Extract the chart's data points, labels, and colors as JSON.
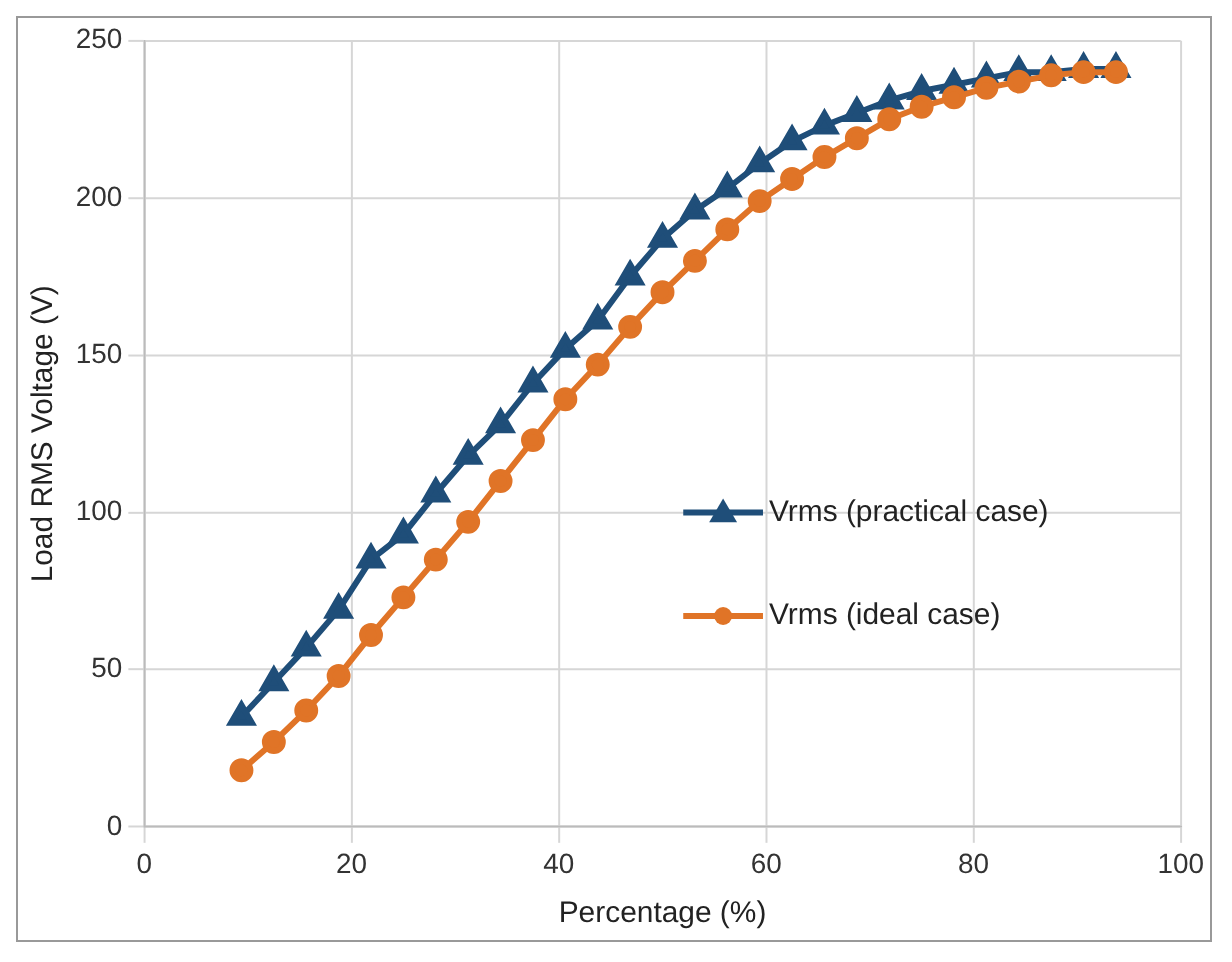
{
  "chart_data": {
    "type": "line",
    "xlabel": "Percentage (%)",
    "ylabel": "Load RMS Voltage (V)",
    "x": [
      9.375,
      12.5,
      15.625,
      18.75,
      21.875,
      25,
      28.125,
      31.25,
      34.375,
      37.5,
      40.625,
      43.75,
      46.875,
      50,
      53.125,
      56.25,
      59.375,
      62.5,
      65.625,
      68.75,
      71.875,
      75,
      78.125,
      81.25,
      84.375,
      87.5,
      90.625,
      93.75
    ],
    "series": [
      {
        "name": "Vrms (practical case)",
        "color": "#1f4e79",
        "marker": "triangle",
        "values": [
          35,
          46,
          57,
          69,
          85,
          93,
          106,
          118,
          128,
          141,
          152,
          161,
          175,
          187,
          196,
          203,
          211,
          218,
          223,
          227,
          231,
          234,
          236,
          238,
          240,
          240,
          241,
          241
        ]
      },
      {
        "name": "Vrms (ideal case)",
        "color": "#e07427",
        "marker": "circle",
        "values": [
          18,
          27,
          37,
          48,
          61,
          73,
          85,
          97,
          110,
          123,
          136,
          147,
          159,
          170,
          180,
          190,
          199,
          206,
          213,
          219,
          225,
          229,
          232,
          235,
          237,
          239,
          240,
          240
        ]
      }
    ],
    "xlim": [
      0,
      100
    ],
    "xticks": [
      0,
      20,
      40,
      60,
      80,
      100
    ],
    "ylim": [
      0,
      250
    ],
    "yticks": [
      0,
      50,
      100,
      150,
      200,
      250
    ],
    "grid": true,
    "legend": "right",
    "line_style": "solid"
  }
}
